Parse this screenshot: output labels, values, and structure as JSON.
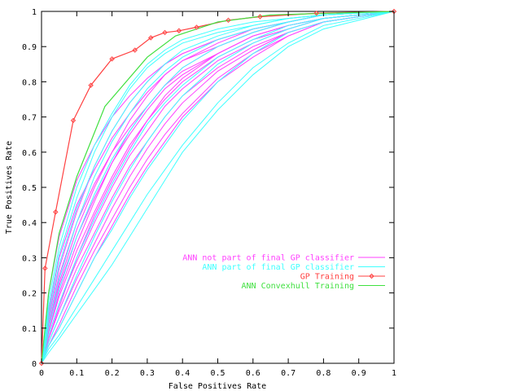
{
  "chart_data": {
    "type": "line",
    "title": "",
    "xlabel": "False Positives Rate",
    "ylabel": "True Positives Rate",
    "xlim": [
      0,
      1
    ],
    "ylim": [
      0,
      1
    ],
    "xticks": [
      "0",
      "0.1",
      "0.2",
      "0.3",
      "0.4",
      "0.5",
      "0.6",
      "0.7",
      "0.8",
      "0.9",
      "1"
    ],
    "yticks": [
      "0",
      "0.1",
      "0.2",
      "0.3",
      "0.4",
      "0.5",
      "0.6",
      "0.7",
      "0.8",
      "0.9",
      "1"
    ],
    "grid": false,
    "legend_position": "center-right",
    "series": [
      {
        "name": "ANN not part of final GP classifier",
        "color": "#ff40ff",
        "marker": "none",
        "curves": [
          {
            "x": [
              0,
              0.02,
              0.05,
              0.1,
              0.15,
              0.2,
              0.25,
              0.3,
              0.35,
              0.4,
              0.5,
              0.6,
              0.7,
              0.8,
              1
            ],
            "y": [
              0,
              0.2,
              0.36,
              0.52,
              0.62,
              0.7,
              0.76,
              0.81,
              0.85,
              0.88,
              0.92,
              0.95,
              0.97,
              0.99,
              1
            ]
          },
          {
            "x": [
              0,
              0.02,
              0.05,
              0.1,
              0.15,
              0.2,
              0.25,
              0.3,
              0.35,
              0.4,
              0.5,
              0.6,
              0.7,
              0.8,
              1
            ],
            "y": [
              0,
              0.15,
              0.3,
              0.45,
              0.55,
              0.64,
              0.71,
              0.77,
              0.82,
              0.86,
              0.9,
              0.94,
              0.97,
              0.99,
              1
            ]
          },
          {
            "x": [
              0,
              0.02,
              0.05,
              0.1,
              0.15,
              0.2,
              0.25,
              0.3,
              0.35,
              0.4,
              0.5,
              0.6,
              0.7,
              0.8,
              1
            ],
            "y": [
              0,
              0.12,
              0.25,
              0.4,
              0.51,
              0.6,
              0.67,
              0.73,
              0.79,
              0.83,
              0.88,
              0.93,
              0.96,
              0.98,
              1
            ]
          },
          {
            "x": [
              0,
              0.02,
              0.05,
              0.1,
              0.15,
              0.2,
              0.25,
              0.3,
              0.35,
              0.4,
              0.5,
              0.6,
              0.7,
              0.8,
              1
            ],
            "y": [
              0,
              0.1,
              0.22,
              0.36,
              0.47,
              0.57,
              0.65,
              0.72,
              0.78,
              0.82,
              0.88,
              0.93,
              0.96,
              0.98,
              1
            ]
          },
          {
            "x": [
              0,
              0.02,
              0.05,
              0.1,
              0.15,
              0.2,
              0.25,
              0.3,
              0.35,
              0.4,
              0.5,
              0.6,
              0.7,
              0.8,
              1
            ],
            "y": [
              0,
              0.09,
              0.19,
              0.32,
              0.43,
              0.53,
              0.62,
              0.69,
              0.75,
              0.8,
              0.87,
              0.92,
              0.95,
              0.98,
              1
            ]
          },
          {
            "x": [
              0,
              0.02,
              0.05,
              0.1,
              0.15,
              0.2,
              0.25,
              0.3,
              0.35,
              0.4,
              0.5,
              0.6,
              0.7,
              0.8,
              1
            ],
            "y": [
              0,
              0.08,
              0.17,
              0.29,
              0.4,
              0.5,
              0.59,
              0.66,
              0.73,
              0.78,
              0.86,
              0.91,
              0.95,
              0.98,
              1
            ]
          },
          {
            "x": [
              0,
              0.02,
              0.05,
              0.1,
              0.15,
              0.2,
              0.25,
              0.3,
              0.35,
              0.4,
              0.5,
              0.6,
              0.7,
              0.8,
              1
            ],
            "y": [
              0,
              0.07,
              0.15,
              0.27,
              0.37,
              0.47,
              0.56,
              0.63,
              0.7,
              0.76,
              0.84,
              0.9,
              0.94,
              0.97,
              1
            ]
          },
          {
            "x": [
              0,
              0.02,
              0.05,
              0.1,
              0.15,
              0.2,
              0.25,
              0.3,
              0.35,
              0.4,
              0.5,
              0.6,
              0.7,
              0.8,
              1
            ],
            "y": [
              0,
              0.06,
              0.13,
              0.24,
              0.34,
              0.44,
              0.53,
              0.61,
              0.68,
              0.74,
              0.83,
              0.89,
              0.94,
              0.97,
              1
            ]
          },
          {
            "x": [
              0,
              0.02,
              0.05,
              0.1,
              0.15,
              0.2,
              0.25,
              0.3,
              0.35,
              0.4,
              0.5,
              0.6,
              0.7,
              0.8,
              1
            ],
            "y": [
              0,
              0.05,
              0.11,
              0.22,
              0.32,
              0.41,
              0.5,
              0.58,
              0.65,
              0.71,
              0.81,
              0.88,
              0.93,
              0.97,
              1
            ]
          },
          {
            "x": [
              0,
              0.02,
              0.05,
              0.1,
              0.15,
              0.2,
              0.25,
              0.3,
              0.35,
              0.4,
              0.5,
              0.6,
              0.7,
              0.8,
              1
            ],
            "y": [
              0,
              0.05,
              0.1,
              0.2,
              0.3,
              0.39,
              0.48,
              0.56,
              0.63,
              0.7,
              0.8,
              0.87,
              0.93,
              0.97,
              1
            ]
          },
          {
            "x": [
              0,
              0.02,
              0.05,
              0.1,
              0.15,
              0.2,
              0.25,
              0.3,
              0.35,
              0.4,
              0.5,
              0.6,
              0.7,
              0.8,
              1
            ],
            "y": [
              0,
              0.11,
              0.23,
              0.38,
              0.5,
              0.6,
              0.69,
              0.76,
              0.82,
              0.86,
              0.91,
              0.95,
              0.97,
              0.99,
              1
            ]
          },
          {
            "x": [
              0,
              0.02,
              0.05,
              0.1,
              0.15,
              0.2,
              0.25,
              0.3,
              0.35,
              0.4,
              0.5,
              0.6,
              0.7,
              0.8,
              1
            ],
            "y": [
              0,
              0.13,
              0.27,
              0.43,
              0.56,
              0.66,
              0.74,
              0.8,
              0.85,
              0.88,
              0.92,
              0.95,
              0.97,
              0.99,
              1
            ]
          },
          {
            "x": [
              0,
              0.02,
              0.05,
              0.1,
              0.15,
              0.2,
              0.25,
              0.3,
              0.35,
              0.4,
              0.5,
              0.6,
              0.7,
              0.8,
              1
            ],
            "y": [
              0,
              0.09,
              0.2,
              0.34,
              0.46,
              0.57,
              0.66,
              0.73,
              0.79,
              0.84,
              0.9,
              0.94,
              0.97,
              0.99,
              1
            ]
          },
          {
            "x": [
              0,
              0.02,
              0.05,
              0.1,
              0.15,
              0.2,
              0.25,
              0.3,
              0.35,
              0.4,
              0.5,
              0.6,
              0.7,
              0.8,
              1
            ],
            "y": [
              0,
              0.07,
              0.16,
              0.3,
              0.42,
              0.52,
              0.61,
              0.69,
              0.76,
              0.81,
              0.88,
              0.93,
              0.96,
              0.98,
              1
            ]
          }
        ]
      },
      {
        "name": "ANN part of final GP classifier",
        "color": "#40ffff",
        "marker": "none",
        "curves": [
          {
            "x": [
              0,
              0.02,
              0.05,
              0.1,
              0.15,
              0.2,
              0.25,
              0.3,
              0.35,
              0.4,
              0.5,
              0.6,
              0.7,
              0.8,
              1
            ],
            "y": [
              0,
              0.18,
              0.33,
              0.5,
              0.62,
              0.71,
              0.79,
              0.85,
              0.89,
              0.92,
              0.95,
              0.97,
              0.98,
              0.99,
              1
            ]
          },
          {
            "x": [
              0,
              0.02,
              0.05,
              0.1,
              0.15,
              0.2,
              0.25,
              0.3,
              0.35,
              0.4,
              0.5,
              0.6,
              0.7,
              0.8,
              1
            ],
            "y": [
              0,
              0.14,
              0.28,
              0.44,
              0.56,
              0.66,
              0.74,
              0.8,
              0.85,
              0.89,
              0.93,
              0.96,
              0.98,
              0.99,
              1
            ]
          },
          {
            "x": [
              0,
              0.02,
              0.05,
              0.1,
              0.15,
              0.2,
              0.25,
              0.3,
              0.35,
              0.4,
              0.5,
              0.6,
              0.7,
              0.8,
              1
            ],
            "y": [
              0,
              0.1,
              0.21,
              0.36,
              0.48,
              0.58,
              0.66,
              0.73,
              0.79,
              0.84,
              0.9,
              0.94,
              0.97,
              0.99,
              1
            ]
          },
          {
            "x": [
              0,
              0.02,
              0.05,
              0.1,
              0.15,
              0.2,
              0.25,
              0.3,
              0.35,
              0.4,
              0.5,
              0.6,
              0.7,
              0.8,
              1
            ],
            "y": [
              0,
              0.08,
              0.17,
              0.3,
              0.41,
              0.51,
              0.6,
              0.68,
              0.74,
              0.79,
              0.87,
              0.92,
              0.96,
              0.98,
              1
            ]
          },
          {
            "x": [
              0,
              0.02,
              0.05,
              0.1,
              0.15,
              0.2,
              0.25,
              0.3,
              0.35,
              0.4,
              0.5,
              0.6,
              0.7,
              0.8,
              1
            ],
            "y": [
              0,
              0.06,
              0.13,
              0.25,
              0.36,
              0.46,
              0.55,
              0.63,
              0.7,
              0.76,
              0.85,
              0.91,
              0.95,
              0.98,
              1
            ]
          },
          {
            "x": [
              0,
              0.02,
              0.05,
              0.1,
              0.15,
              0.2,
              0.25,
              0.3,
              0.35,
              0.4,
              0.5,
              0.6,
              0.7,
              0.8,
              1
            ],
            "y": [
              0,
              0.05,
              0.1,
              0.2,
              0.3,
              0.38,
              0.47,
              0.55,
              0.62,
              0.69,
              0.8,
              0.88,
              0.94,
              0.97,
              1
            ]
          },
          {
            "x": [
              0,
              0.02,
              0.05,
              0.1,
              0.15,
              0.2,
              0.25,
              0.3,
              0.35,
              0.4,
              0.5,
              0.6,
              0.7,
              0.8,
              1
            ],
            "y": [
              0,
              0.04,
              0.08,
              0.16,
              0.24,
              0.32,
              0.4,
              0.48,
              0.55,
              0.62,
              0.74,
              0.84,
              0.91,
              0.96,
              1
            ]
          },
          {
            "x": [
              0,
              0.02,
              0.05,
              0.1,
              0.15,
              0.2,
              0.25,
              0.3,
              0.35,
              0.4,
              0.5,
              0.6,
              0.7,
              0.8,
              1
            ],
            "y": [
              0,
              0.16,
              0.31,
              0.47,
              0.6,
              0.7,
              0.78,
              0.84,
              0.88,
              0.91,
              0.94,
              0.96,
              0.98,
              0.99,
              1
            ]
          },
          {
            "x": [
              0,
              0.02,
              0.05,
              0.1,
              0.15,
              0.2,
              0.25,
              0.3,
              0.35,
              0.4,
              0.5,
              0.6,
              0.7,
              0.8,
              1
            ],
            "y": [
              0,
              0.12,
              0.24,
              0.4,
              0.53,
              0.63,
              0.71,
              0.78,
              0.83,
              0.87,
              0.92,
              0.95,
              0.97,
              0.99,
              1
            ]
          },
          {
            "x": [
              0,
              0.02,
              0.05,
              0.1,
              0.15,
              0.2,
              0.25,
              0.3,
              0.35,
              0.4,
              0.5,
              0.6,
              0.7,
              0.8,
              1
            ],
            "y": [
              0,
              0.03,
              0.07,
              0.14,
              0.21,
              0.28,
              0.36,
              0.44,
              0.52,
              0.6,
              0.72,
              0.82,
              0.9,
              0.95,
              1
            ]
          }
        ]
      },
      {
        "name": "GP Training",
        "color": "#ff4040",
        "marker": "diamond",
        "x": [
          0,
          0.01,
          0.04,
          0.09,
          0.14,
          0.2,
          0.265,
          0.31,
          0.35,
          0.39,
          0.44,
          0.53,
          0.62,
          0.78,
          1
        ],
        "y": [
          0,
          0.27,
          0.43,
          0.69,
          0.79,
          0.865,
          0.89,
          0.925,
          0.94,
          0.945,
          0.955,
          0.975,
          0.985,
          0.995,
          1
        ]
      },
      {
        "name": "ANN Convexhull Training",
        "color": "#40e040",
        "marker": "none",
        "x": [
          0,
          0.02,
          0.05,
          0.1,
          0.18,
          0.3,
          0.38,
          0.5,
          0.65,
          1
        ],
        "y": [
          0,
          0.2,
          0.37,
          0.53,
          0.73,
          0.87,
          0.93,
          0.97,
          0.99,
          1
        ]
      }
    ]
  }
}
